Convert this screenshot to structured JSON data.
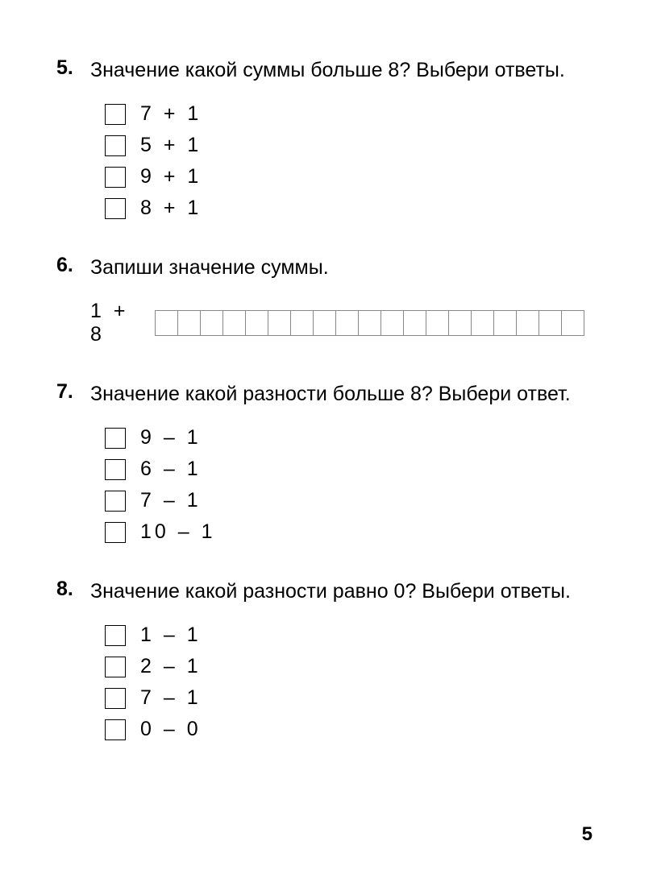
{
  "problems": [
    {
      "number": "5.",
      "question": "Значение какой суммы больше 8? Выбери ответы.",
      "type": "checkbox",
      "options": [
        "7 + 1",
        "5 + 1",
        "9 + 1",
        "8 + 1"
      ]
    },
    {
      "number": "6.",
      "question": "Запиши значение суммы.",
      "type": "fillin",
      "label": "1 + 8",
      "grid_cells": 19
    },
    {
      "number": "7.",
      "question": "Значение какой разности больше 8? Выбери ответ.",
      "type": "checkbox",
      "options": [
        "9 – 1",
        "6 – 1",
        "7 – 1",
        "10 – 1"
      ]
    },
    {
      "number": "8.",
      "question": "Значение какой разности равно 0? Выбери ответы.",
      "type": "checkbox",
      "options": [
        "1 – 1",
        "2 – 1",
        "7 – 1",
        "0 – 0"
      ]
    }
  ],
  "page_number": "5",
  "styling": {
    "background_color": "#ffffff",
    "text_color": "#000000",
    "checkbox_border_color": "#000000",
    "grid_border_color": "#888888",
    "body_font_size": 25,
    "number_font_weight": "bold",
    "option_letter_spacing": 4,
    "checkbox_size": 26,
    "grid_cell_width": 29,
    "grid_cell_height": 32
  }
}
